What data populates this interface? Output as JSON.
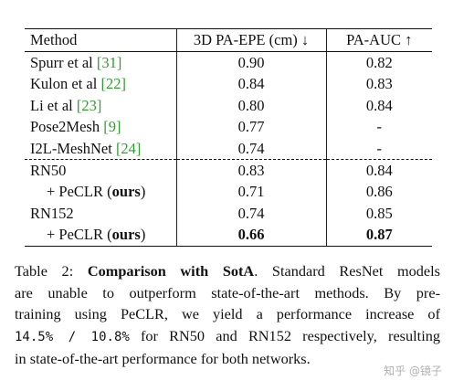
{
  "table": {
    "headers": [
      "Method",
      "3D PA-EPE (cm) ↓",
      "PA-AUC ↑"
    ],
    "rows": [
      {
        "method": "Spurr et al ",
        "cite": "[31]",
        "epe": "0.90",
        "auc": "0.82"
      },
      {
        "method": "Kulon et al ",
        "cite": "[22]",
        "epe": "0.84",
        "auc": "0.83"
      },
      {
        "method": "Li et al ",
        "cite": "[23]",
        "epe": "0.80",
        "auc": "0.84"
      },
      {
        "method": "Pose2Mesh ",
        "cite": "[9]",
        "epe": "0.77",
        "auc": "-"
      },
      {
        "method": "I2L-MeshNet ",
        "cite": "[24]",
        "epe": "0.74",
        "auc": "-"
      },
      {
        "method": "RN50",
        "epe": "0.83",
        "auc": "0.84"
      },
      {
        "method": "+ PeCLR (",
        "bold": "ours",
        "close": ")",
        "epe": "0.71",
        "auc": "0.86"
      },
      {
        "method": "RN152",
        "epe": "0.74",
        "auc": "0.85"
      },
      {
        "method": "+ PeCLR (",
        "bold": "ours",
        "close": ")",
        "epe": "0.66",
        "auc": "0.87"
      }
    ]
  },
  "caption": {
    "label": "Table 2: ",
    "bold_title": "Comparison with SotA",
    "l1_rest": ". Standard ResNet models",
    "l2": "are unable to outperform state-of-the-art methods. By pre-",
    "l3": "training using PeCLR, we yield a performance increase of",
    "l4_a": "14.5% / 10.8%",
    "l4_b": " for RN50 and RN152 respectively, resulting",
    "l5": "in state-of-the-art performance for both networks."
  },
  "watermark": "知乎 @镜子"
}
